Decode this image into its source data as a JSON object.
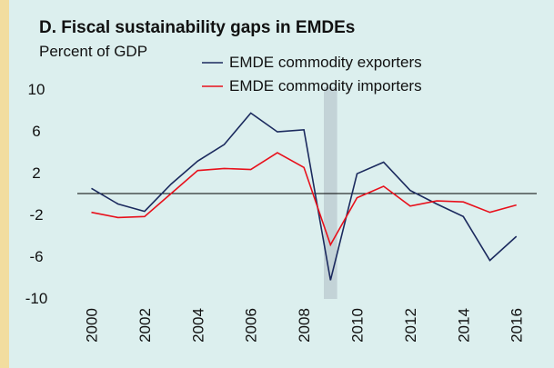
{
  "chart_data": {
    "type": "line",
    "title": "D. Fiscal sustainability gaps in EMDEs",
    "ylabel": "Percent of GDP",
    "xlabel": "",
    "x": [
      2000,
      2001,
      2002,
      2003,
      2004,
      2005,
      2006,
      2007,
      2008,
      2009,
      2010,
      2011,
      2012,
      2013,
      2014,
      2015,
      2016
    ],
    "x_tick_labels": [
      "2000",
      "2002",
      "2004",
      "2006",
      "2008",
      "2010",
      "2012",
      "2014",
      "2016"
    ],
    "y_tick_labels": [
      "10",
      "6",
      "2",
      "-2",
      "-6",
      "-10"
    ],
    "y_ticks": [
      10,
      6,
      2,
      -2,
      -6,
      -10
    ],
    "ylim": [
      -10,
      10
    ],
    "xlim": [
      1999.5,
      2016.5
    ],
    "zero_line": 0,
    "shaded_region": {
      "x_start": 2008.75,
      "x_end": 2009.25,
      "color": "#c3d3d7"
    },
    "series": [
      {
        "name": "EMDE commodity exporters",
        "color": "#1b2a5e",
        "values": [
          0.5,
          -1.0,
          -1.7,
          0.9,
          3.1,
          4.7,
          7.7,
          5.9,
          6.1,
          -8.3,
          1.9,
          3.0,
          0.3,
          -1.0,
          -2.2,
          -6.4,
          -4.1
        ]
      },
      {
        "name": "EMDE commodity importers",
        "color": "#e8101b",
        "values": [
          -1.8,
          -2.3,
          -2.2,
          0.0,
          2.2,
          2.4,
          2.3,
          3.9,
          2.5,
          -4.9,
          -0.4,
          0.7,
          -1.2,
          -0.7,
          -0.8,
          -1.8,
          -1.1
        ]
      }
    ],
    "legend_position": "top-center",
    "grid": false
  }
}
